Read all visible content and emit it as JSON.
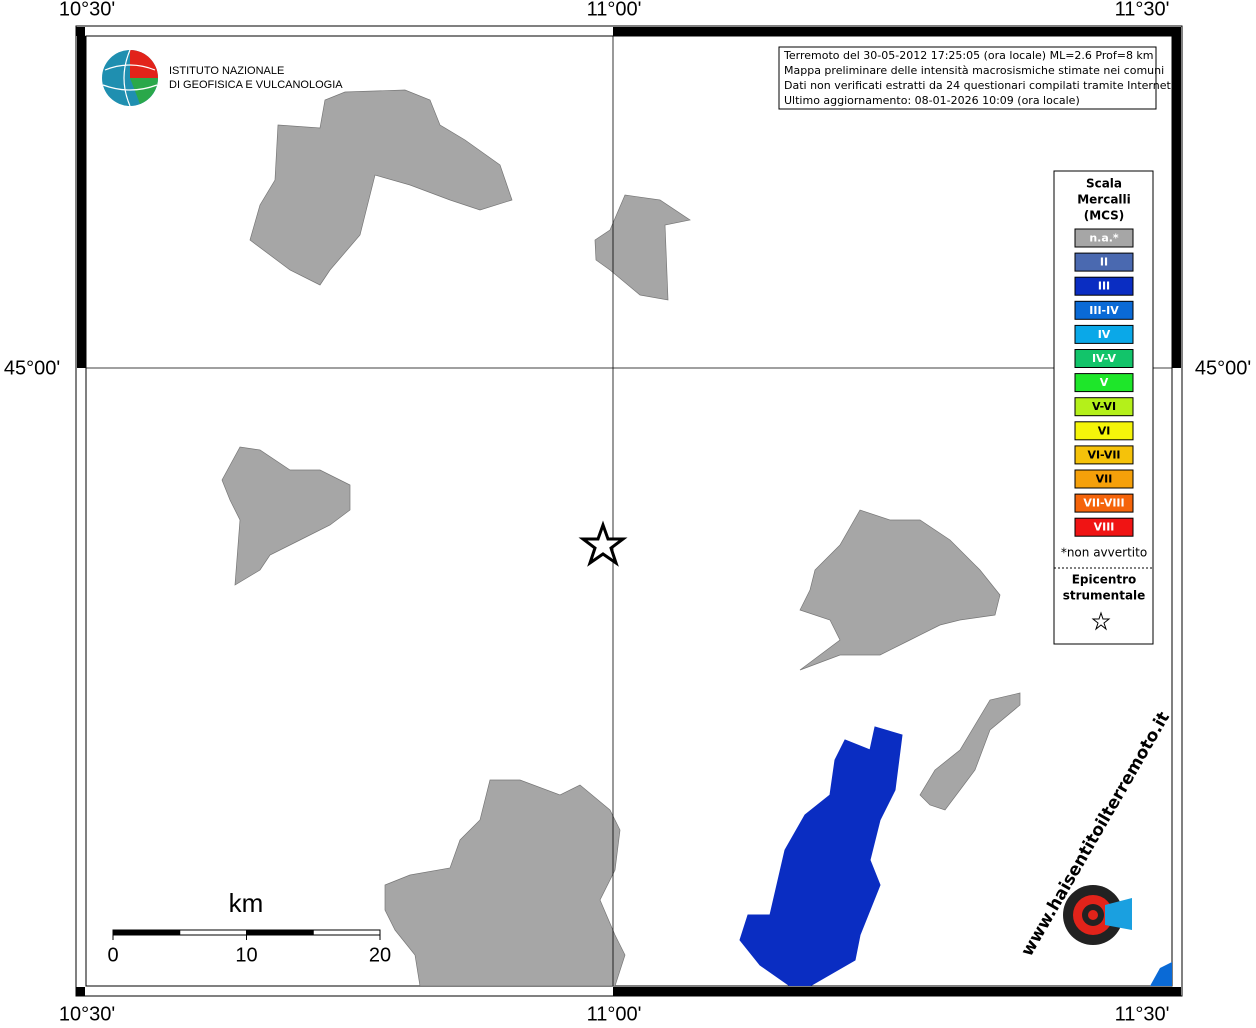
{
  "map": {
    "lon_labels": [
      "10°30'",
      "11°00'",
      "11°30'"
    ],
    "lat_labels": [
      "45°00'"
    ],
    "info": [
      "Terremoto del 30-05-2012 17:25:05 (ora locale) ML=2.6 Prof=8 km",
      "Mappa preliminare delle intensità macrosismiche stimate nei comuni",
      "Dati non verificati estratti da 24 questionari compilati tramite Internet.",
      "Ultimo aggiornamento: 08-01-2026 10:09 (ora locale)"
    ],
    "logo": [
      "ISTITUTO NAZIONALE",
      "DI GEOFISICA E VULCANOLOGIA"
    ],
    "legend": {
      "title": [
        "Scala",
        "Mercalli",
        "(MCS)"
      ],
      "items": [
        {
          "label": "n.a.*",
          "color": "#a6a6a6"
        },
        {
          "label": "II",
          "color": "#4a69b0"
        },
        {
          "label": "III",
          "color": "#0a2dc2"
        },
        {
          "label": "III-IV",
          "color": "#0a6ad6"
        },
        {
          "label": "IV",
          "color": "#0aa8e8"
        },
        {
          "label": "IV-V",
          "color": "#12c46a"
        },
        {
          "label": "V",
          "color": "#1ee62a"
        },
        {
          "label": "V-VI",
          "color": "#b4f01a"
        },
        {
          "label": "VI",
          "color": "#f5f50a"
        },
        {
          "label": "VI-VII",
          "color": "#f5c20a"
        },
        {
          "label": "VII",
          "color": "#f5a00a"
        },
        {
          "label": "VII-VIII",
          "color": "#f5640a"
        },
        {
          "label": "VIII",
          "color": "#f01414"
        }
      ],
      "note": "*non avvertito",
      "epicenter": [
        "Epicentro",
        "strumentale"
      ]
    },
    "scale": {
      "unit": "km",
      "ticks": [
        0,
        10,
        20
      ]
    },
    "watermark": "www.haisentitoilterremoto.it"
  }
}
